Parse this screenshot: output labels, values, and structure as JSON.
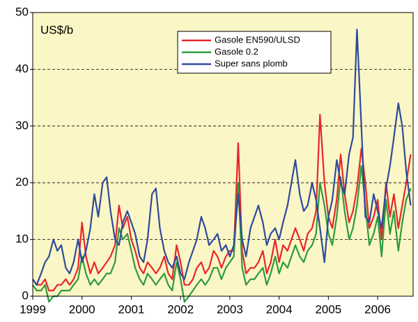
{
  "chart_data": {
    "type": "line",
    "annotation": "US$/b",
    "x": [
      1999.0,
      1999.08,
      1999.17,
      1999.25,
      1999.33,
      1999.42,
      1999.5,
      1999.58,
      1999.67,
      1999.75,
      1999.83,
      1999.92,
      2000.0,
      2000.08,
      2000.17,
      2000.25,
      2000.33,
      2000.42,
      2000.5,
      2000.58,
      2000.67,
      2000.75,
      2000.83,
      2000.92,
      2001.0,
      2001.08,
      2001.17,
      2001.25,
      2001.33,
      2001.42,
      2001.5,
      2001.58,
      2001.67,
      2001.75,
      2001.83,
      2001.92,
      2002.0,
      2002.08,
      2002.17,
      2002.25,
      2002.33,
      2002.42,
      2002.5,
      2002.58,
      2002.67,
      2002.75,
      2002.83,
      2002.92,
      2003.0,
      2003.08,
      2003.17,
      2003.25,
      2003.33,
      2003.42,
      2003.5,
      2003.58,
      2003.67,
      2003.75,
      2003.83,
      2003.92,
      2004.0,
      2004.08,
      2004.17,
      2004.25,
      2004.33,
      2004.42,
      2004.5,
      2004.58,
      2004.67,
      2004.75,
      2004.83,
      2004.92,
      2005.0,
      2005.08,
      2005.17,
      2005.25,
      2005.33,
      2005.42,
      2005.5,
      2005.58,
      2005.67,
      2005.75,
      2005.83,
      2005.92,
      2006.0,
      2006.08,
      2006.17,
      2006.25,
      2006.33,
      2006.42,
      2006.5,
      2006.58,
      2006.67
    ],
    "series": [
      {
        "name": "Gasole EN590/ULSD",
        "color": "#e8262b",
        "values": [
          3,
          2,
          2,
          3,
          1,
          1,
          2,
          2,
          3,
          2,
          3,
          5,
          13,
          7,
          4,
          6,
          4,
          5,
          6,
          7,
          9,
          16,
          12,
          14,
          10,
          8,
          5,
          4,
          6,
          5,
          4,
          5,
          7,
          4,
          3,
          9,
          6,
          2,
          2,
          3,
          5,
          6,
          4,
          5,
          8,
          7,
          5,
          7,
          8,
          8,
          27,
          8,
          4,
          5,
          5,
          6,
          8,
          4,
          6,
          10,
          6,
          9,
          8,
          10,
          12,
          10,
          8,
          11,
          12,
          15,
          32,
          20,
          14,
          12,
          17,
          25,
          18,
          13,
          15,
          19,
          26,
          20,
          12,
          14,
          17,
          10,
          20,
          14,
          18,
          12,
          16,
          20,
          25
        ]
      },
      {
        "name": "Gasole 0.2",
        "color": "#2d9b3c",
        "values": [
          2,
          1,
          1,
          2,
          -1,
          0,
          0,
          1,
          1,
          1,
          2,
          3,
          7,
          4,
          2,
          3,
          2,
          3,
          4,
          4,
          6,
          12,
          10,
          11,
          8,
          5,
          3,
          2,
          4,
          3,
          2,
          3,
          4,
          2,
          1,
          6,
          3,
          -1,
          0,
          1,
          2,
          3,
          2,
          3,
          5,
          5,
          3,
          5,
          6,
          7,
          20,
          5,
          2,
          3,
          3,
          4,
          5,
          2,
          4,
          7,
          4,
          6,
          5,
          7,
          9,
          7,
          6,
          8,
          9,
          11,
          20,
          16,
          11,
          9,
          14,
          21,
          15,
          10,
          12,
          16,
          23,
          16,
          9,
          11,
          14,
          7,
          17,
          11,
          15,
          8,
          13,
          17,
          19
        ]
      },
      {
        "name": "Super sans plomb",
        "color": "#2e4a9c",
        "values": [
          3,
          2,
          4,
          6,
          7,
          10,
          8,
          9,
          5,
          4,
          6,
          10,
          6,
          8,
          12,
          18,
          14,
          20,
          21,
          15,
          10,
          9,
          13,
          15,
          13,
          11,
          7,
          6,
          10,
          18,
          19,
          12,
          8,
          6,
          5,
          7,
          4,
          3,
          6,
          8,
          10,
          14,
          12,
          9,
          10,
          11,
          8,
          9,
          7,
          9,
          18,
          10,
          7,
          12,
          14,
          16,
          13,
          9,
          11,
          12,
          10,
          13,
          16,
          20,
          24,
          18,
          15,
          16,
          20,
          17,
          12,
          6,
          14,
          17,
          24,
          20,
          18,
          25,
          28,
          47,
          30,
          14,
          13,
          18,
          15,
          12,
          19,
          23,
          28,
          34,
          30,
          22,
          16
        ]
      }
    ],
    "xlim": [
      1999,
      2006.72
    ],
    "xticks": [
      1999,
      2000,
      2001,
      2002,
      2003,
      2004,
      2005,
      2006
    ],
    "ylim": [
      0,
      50
    ],
    "yticks": [
      0,
      10,
      20,
      30,
      40,
      50
    ],
    "grid": true,
    "legend": "upper center",
    "background": "#fbf6c5"
  }
}
